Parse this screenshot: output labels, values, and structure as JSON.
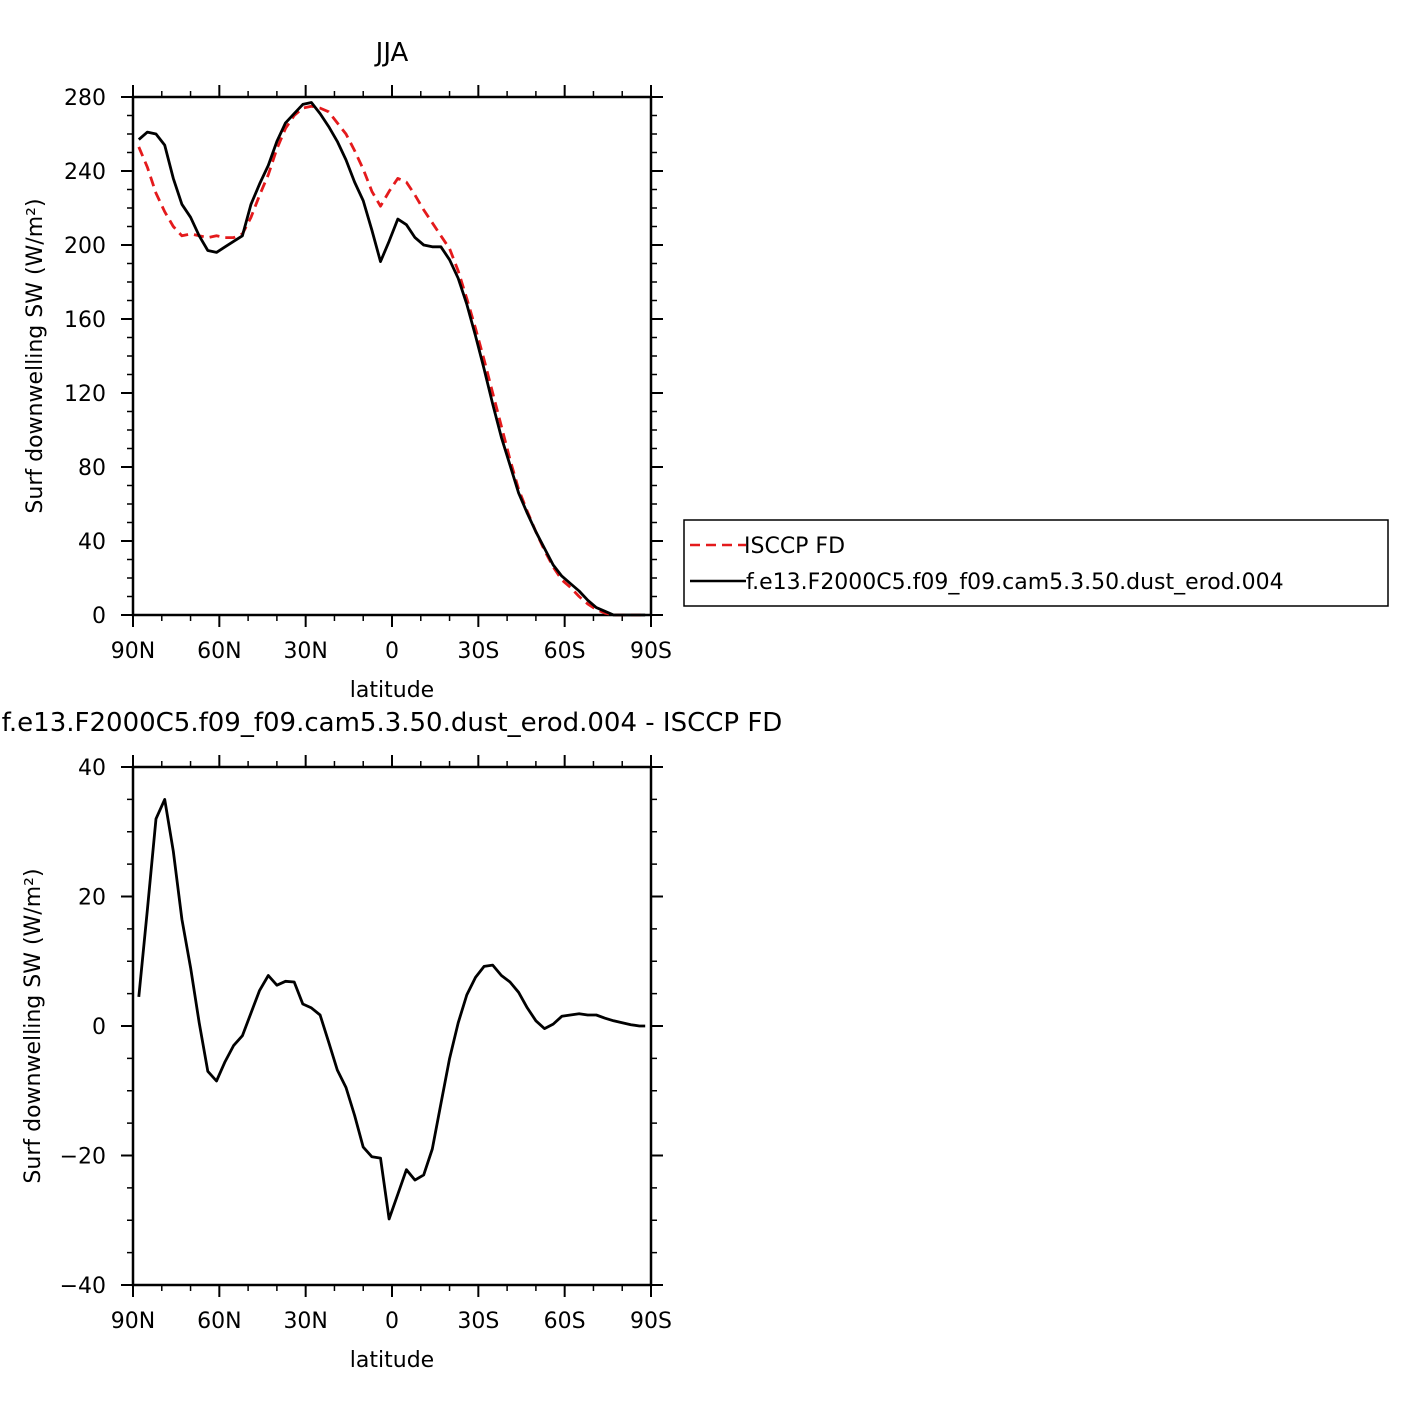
{
  "chart_data": [
    {
      "type": "line",
      "title": "JJA",
      "xlabel": "latitude",
      "ylabel": "Surf downwelling SW (W/m²)",
      "xlim": [
        90,
        -90
      ],
      "ylim": [
        0,
        280
      ],
      "xticks": [
        90,
        60,
        30,
        0,
        -30,
        -60,
        -90
      ],
      "xtick_labels": [
        "90N",
        "60N",
        "30N",
        "0",
        "30S",
        "60S",
        "90S"
      ],
      "yticks": [
        0,
        40,
        80,
        120,
        160,
        200,
        240,
        280
      ],
      "ytick_labels": [
        "0",
        "40",
        "80",
        "120",
        "160",
        "200",
        "240",
        "280"
      ],
      "series": [
        {
          "name": "ISCCP FD",
          "color": "#e41a1c",
          "dash": true,
          "x": [
            88,
            85,
            82,
            79,
            76,
            73,
            70,
            67,
            64,
            61,
            58,
            55,
            52,
            49,
            46,
            43,
            40,
            37,
            34,
            31,
            28,
            25,
            22,
            19,
            16,
            13,
            10,
            7,
            4,
            1,
            -2,
            -5,
            -8,
            -11,
            -14,
            -17,
            -20,
            -23,
            -26,
            -29,
            -32,
            -35,
            -38,
            -41,
            -44,
            -47,
            -50,
            -53,
            -56,
            -59,
            -62,
            -65,
            -68,
            -71,
            -74,
            -77,
            -80,
            -83,
            -86,
            -88
          ],
          "values": [
            253,
            242,
            228,
            218,
            210,
            205,
            206,
            205,
            204,
            205,
            204,
            204,
            206,
            215,
            227,
            238,
            252,
            263,
            270,
            274,
            275,
            274,
            272,
            266,
            260,
            251,
            241,
            229,
            221,
            229,
            236,
            234,
            227,
            219,
            212,
            205,
            198,
            186,
            171,
            155,
            138,
            120,
            102,
            84,
            68,
            56,
            45,
            35,
            26,
            19,
            15,
            10,
            6,
            3,
            1,
            0,
            0,
            0,
            0,
            0
          ]
        },
        {
          "name": "f.e13.F2000C5.f09_f09.cam5.3.50.dust_erod.004",
          "color": "#000000",
          "dash": false,
          "x": [
            88,
            85,
            82,
            79,
            76,
            73,
            70,
            67,
            64,
            61,
            58,
            55,
            52,
            49,
            46,
            43,
            40,
            37,
            34,
            31,
            28,
            25,
            22,
            19,
            16,
            13,
            10,
            7,
            4,
            1,
            -2,
            -5,
            -8,
            -11,
            -14,
            -17,
            -20,
            -23,
            -26,
            -29,
            -32,
            -35,
            -38,
            -41,
            -44,
            -47,
            -50,
            -53,
            -56,
            -59,
            -62,
            -65,
            -68,
            -71,
            -74,
            -77,
            -80,
            -83,
            -86,
            -88
          ],
          "values": [
            257,
            261,
            260,
            254,
            236,
            222,
            215,
            205,
            197,
            196,
            199,
            202,
            205,
            222,
            233,
            243,
            256,
            266,
            271,
            276,
            277,
            271,
            264,
            256,
            246,
            234,
            224,
            208,
            191,
            202,
            214,
            211,
            204,
            200,
            199,
            199,
            192,
            182,
            168,
            151,
            133,
            114,
            96,
            81,
            66,
            55,
            45,
            36,
            27,
            21,
            17,
            13,
            8,
            4,
            2,
            0,
            0,
            0,
            0,
            0
          ]
        }
      ],
      "legend_position": "right"
    },
    {
      "type": "line",
      "title": "f.e13.F2000C5.f09_f09.cam5.3.50.dust_erod.004 - ISCCP FD",
      "xlabel": "latitude",
      "ylabel": "Surf downwelling SW (W/m²)",
      "xlim": [
        90,
        -90
      ],
      "ylim": [
        -40,
        40
      ],
      "xticks": [
        90,
        60,
        30,
        0,
        -30,
        -60,
        -90
      ],
      "xtick_labels": [
        "90N",
        "60N",
        "30N",
        "0",
        "30S",
        "60S",
        "90S"
      ],
      "yticks": [
        -40,
        -20,
        0,
        20,
        40
      ],
      "ytick_labels": [
        "−40",
        "−20",
        "0",
        "20",
        "40"
      ],
      "series": [
        {
          "color": "#000000",
          "dash": false,
          "x": [
            88,
            85,
            82,
            79,
            76,
            73,
            70,
            67,
            64,
            61,
            58,
            55,
            52,
            49,
            46,
            43,
            40,
            37,
            34,
            31,
            28,
            25,
            22,
            19,
            16,
            13,
            10,
            7,
            4,
            1,
            -2,
            -5,
            -8,
            -11,
            -14,
            -17,
            -20,
            -23,
            -26,
            -29,
            -32,
            -35,
            -38,
            -41,
            -44,
            -47,
            -50,
            -53,
            -56,
            -59,
            -62,
            -65,
            -68,
            -71,
            -74,
            -77,
            -80,
            -83,
            -86,
            -88
          ],
          "values": [
            4.5,
            18,
            32,
            35,
            27,
            16.5,
            9,
            0.5,
            -7,
            -8.5,
            -5.5,
            -3,
            -1.5,
            2,
            5.5,
            7.8,
            6.3,
            6.9,
            6.8,
            3.4,
            2.8,
            1.7,
            -2.5,
            -6.8,
            -9.5,
            -13.8,
            -18.7,
            -20.2,
            -20.4,
            -29.8,
            -26,
            -22.2,
            -23.8,
            -23,
            -19,
            -12,
            -5,
            0.5,
            4.8,
            7.5,
            9.2,
            9.4,
            7.8,
            6.8,
            5.2,
            2.8,
            0.8,
            -0.4,
            0.3,
            1.5,
            1.7,
            1.9,
            1.7,
            1.7,
            1.2,
            0.8,
            0.5,
            0.2,
            0.0,
            0.0
          ]
        }
      ]
    }
  ]
}
